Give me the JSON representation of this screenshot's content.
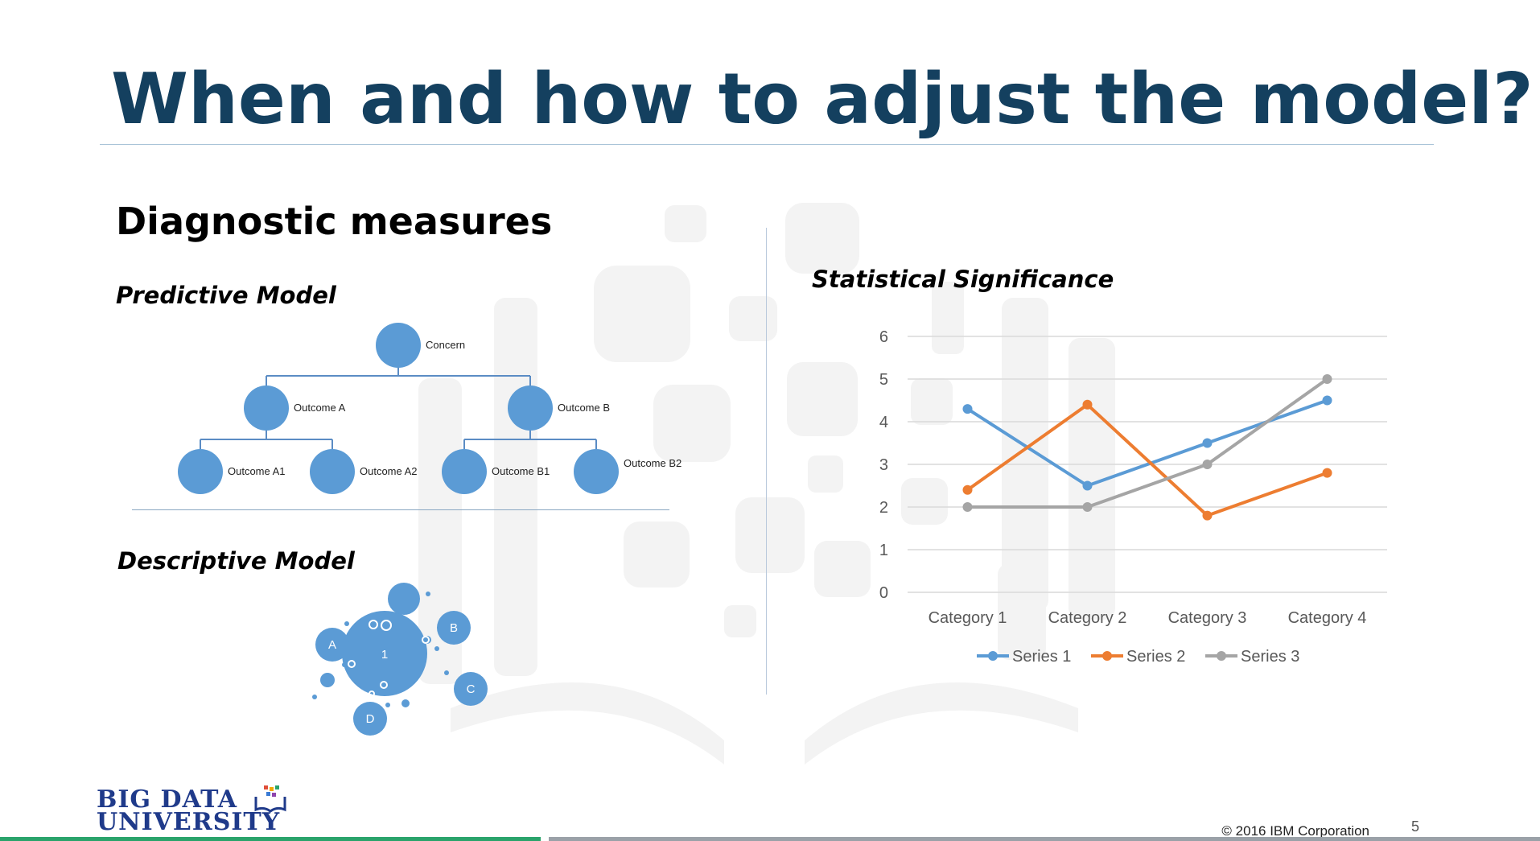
{
  "slide": {
    "title": "When and how to adjust the model?",
    "heading": "Diagnostic measures",
    "predictive_label": "Predictive Model",
    "descriptive_label": "Descriptive Model",
    "stats_label": "Statistical Significance",
    "copyright": "© 2016 IBM Corporation",
    "page_number": "5",
    "logo_line1": "BIG DATA",
    "logo_line2": "UNIVERSITY"
  },
  "tree": {
    "root": "Concern",
    "level1": [
      "Outcome A",
      "Outcome B"
    ],
    "level2": [
      "Outcome A1",
      "Outcome A2",
      "Outcome B1",
      "Outcome B2"
    ],
    "node_color": "#5b9bd5"
  },
  "bubbles": {
    "center": "1",
    "labels": [
      "A",
      "B",
      "C",
      "D"
    ],
    "color": "#5b9bd5"
  },
  "chart_data": {
    "type": "line",
    "categories": [
      "Category 1",
      "Category 2",
      "Category 3",
      "Category 4"
    ],
    "series": [
      {
        "name": "Series 1",
        "values": [
          4.3,
          2.5,
          3.5,
          4.5
        ],
        "color": "#5b9bd5"
      },
      {
        "name": "Series 2",
        "values": [
          2.4,
          4.4,
          1.8,
          2.8
        ],
        "color": "#ed7d31"
      },
      {
        "name": "Series 3",
        "values": [
          2,
          2,
          3,
          5
        ],
        "color": "#a5a5a5"
      }
    ],
    "ylim": [
      0,
      6
    ],
    "yticks": [
      0,
      1,
      2,
      3,
      4,
      5,
      6
    ],
    "grid": true,
    "legend": "bottom"
  }
}
